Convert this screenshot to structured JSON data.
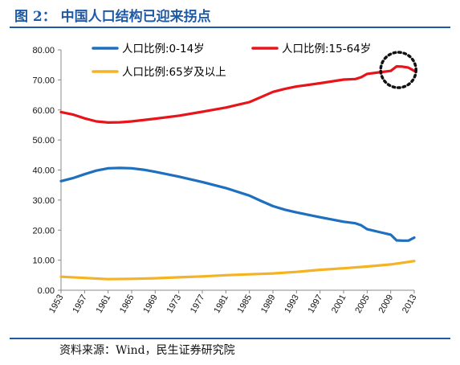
{
  "header": {
    "title": "图 2：  中国人口结构已迎来拐点"
  },
  "footer": {
    "source": "资料来源：Wind，民生证券研究院"
  },
  "chart_data": {
    "type": "line",
    "title": "",
    "xlabel": "",
    "ylabel": "",
    "ylim": [
      0,
      80
    ],
    "yticks": [
      "0.00",
      "10.00",
      "20.00",
      "30.00",
      "40.00",
      "50.00",
      "60.00",
      "70.00",
      "80.00"
    ],
    "xticks": [
      "1953",
      "1957",
      "1961",
      "1965",
      "1969",
      "1973",
      "1977",
      "1981",
      "1985",
      "1989",
      "1993",
      "1997",
      "2001",
      "2005",
      "2009",
      "2013"
    ],
    "grid": false,
    "legend_position": "top-left",
    "annotation": "dotted circle around 2010-2013 on the 15-64 series",
    "series": [
      {
        "name": "人口比例:0-14岁",
        "color": "#1f6fbf",
        "x": [
          1953,
          1955,
          1957,
          1959,
          1961,
          1963,
          1965,
          1967,
          1969,
          1973,
          1977,
          1981,
          1985,
          1987,
          1989,
          1991,
          1993,
          1997,
          2001,
          2003,
          2004,
          2005,
          2007,
          2009,
          2010,
          2011,
          2012,
          2013
        ],
        "values": [
          36.3,
          37.3,
          38.6,
          39.8,
          40.6,
          40.7,
          40.6,
          40.1,
          39.4,
          37.8,
          36.0,
          34.0,
          31.5,
          29.7,
          28.0,
          26.8,
          25.9,
          24.3,
          22.8,
          22.3,
          21.6,
          20.3,
          19.4,
          18.5,
          16.6,
          16.5,
          16.5,
          17.5
        ]
      },
      {
        "name": "人口比例:15-64岁",
        "color": "#e8141b",
        "x": [
          1953,
          1955,
          1957,
          1959,
          1961,
          1963,
          1965,
          1969,
          1973,
          1977,
          1981,
          1985,
          1987,
          1989,
          1991,
          1993,
          1997,
          2001,
          2003,
          2004,
          2005,
          2007,
          2009,
          2010,
          2011,
          2012,
          2013
        ],
        "values": [
          59.3,
          58.5,
          57.2,
          56.2,
          55.8,
          55.9,
          56.2,
          57.1,
          58.1,
          59.4,
          60.8,
          62.6,
          64.3,
          66.0,
          67.0,
          67.8,
          68.9,
          70.1,
          70.3,
          70.9,
          72.0,
          72.5,
          73.0,
          74.5,
          74.4,
          74.1,
          73.0
        ]
      },
      {
        "name": "人口比例:65岁及以上",
        "color": "#f5b324",
        "x": [
          1953,
          1957,
          1961,
          1965,
          1969,
          1973,
          1977,
          1981,
          1985,
          1989,
          1993,
          1997,
          2001,
          2005,
          2009,
          2013
        ],
        "values": [
          4.5,
          4.1,
          3.7,
          3.8,
          4.0,
          4.3,
          4.6,
          5.0,
          5.3,
          5.6,
          6.1,
          6.8,
          7.3,
          7.9,
          8.6,
          9.7
        ]
      }
    ]
  }
}
